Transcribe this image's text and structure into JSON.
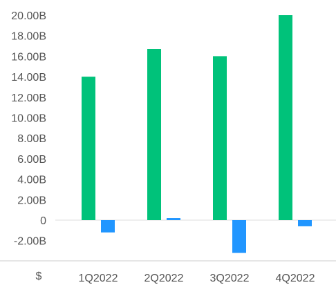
{
  "chart_data": {
    "type": "bar",
    "categories": [
      "1Q2022",
      "2Q2022",
      "3Q2022",
      "4Q2022"
    ],
    "series": [
      {
        "values": [
          14.0,
          16.7,
          16.0,
          20.0
        ],
        "color": "#00c27a"
      },
      {
        "values": [
          -1.2,
          0.2,
          -3.2,
          -0.6
        ],
        "color": "#2196ff"
      }
    ],
    "yticks": [
      {
        "value": 20,
        "label": "20.00B"
      },
      {
        "value": 18,
        "label": "18.00B"
      },
      {
        "value": 16,
        "label": "16.00B"
      },
      {
        "value": 14,
        "label": "14.00B"
      },
      {
        "value": 12,
        "label": "12.00B"
      },
      {
        "value": 10,
        "label": "10.00B"
      },
      {
        "value": 8,
        "label": "8.00B"
      },
      {
        "value": 6,
        "label": "6.00B"
      },
      {
        "value": 4,
        "label": "4.00B"
      },
      {
        "value": 2,
        "label": "2.00B"
      },
      {
        "value": 0,
        "label": "0"
      },
      {
        "value": -2,
        "label": "-2.00B"
      }
    ],
    "ylim": [
      -4,
      20
    ],
    "currency_label": "$",
    "grid": false,
    "zero_line_color": "#dddddd",
    "axis_line_color": "#cccccc"
  }
}
